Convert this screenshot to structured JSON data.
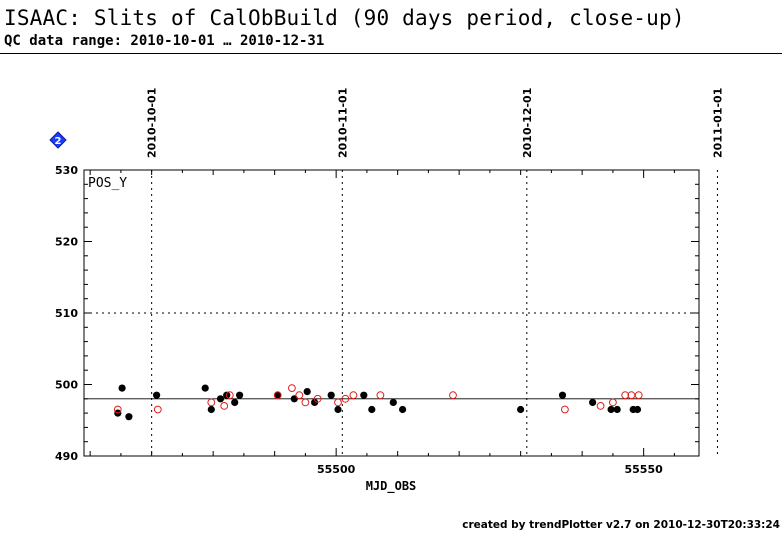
{
  "header": {
    "title": "ISAAC: Slits of CalObBuild (90 days period, close-up)",
    "subtitle": "QC data range: 2010-10-01 … 2010-12-31"
  },
  "badge": {
    "icon": "diamond-info-icon",
    "label": "2",
    "color": "#1a3cff"
  },
  "footer": {
    "text": "created by trendPlotter v2.7 on 2010-12-30T20:33:24"
  },
  "chart_data": {
    "type": "scatter",
    "title": "",
    "panel_label": "POS_Y",
    "xlabel": "MJD_OBS",
    "ylabel": "",
    "xlim": [
      55459,
      55559
    ],
    "ylim": [
      490,
      530
    ],
    "x_ticks": [
      55500,
      55550
    ],
    "y_ticks": [
      490,
      500,
      510,
      520,
      530
    ],
    "grid": "dotted",
    "date_lines": [
      {
        "label": "2010-10-01",
        "mjd": 55470
      },
      {
        "label": "2010-11-01",
        "mjd": 55501
      },
      {
        "label": "2010-12-01",
        "mjd": 55531
      },
      {
        "label": "2011-01-01",
        "mjd": 55562
      }
    ],
    "reference_line": 498,
    "colors": {
      "filled": "#000000",
      "open": "#e0201c"
    },
    "series": [
      {
        "marker": "filled",
        "x": [
          55464.5,
          55465.2,
          55466.3,
          55470.8,
          55478.7,
          55479.7,
          55481.2,
          55482.2,
          55483.5,
          55484.3,
          55490.5,
          55493.2,
          55495.3,
          55496.5,
          55499.2,
          55500.3,
          55504.5,
          55505.8,
          55509.3,
          55510.8,
          55530.0,
          55536.8,
          55541.7,
          55544.7,
          55545.7,
          55548.3,
          55549.0
        ],
        "y": [
          496.0,
          499.5,
          495.5,
          498.5,
          499.5,
          496.5,
          498.0,
          498.5,
          497.5,
          498.5,
          498.5,
          498.0,
          499.0,
          497.5,
          498.5,
          496.5,
          498.5,
          496.5,
          497.5,
          496.5,
          496.5,
          498.5,
          497.5,
          496.5,
          496.5,
          496.5,
          496.5
        ]
      },
      {
        "marker": "open",
        "x": [
          55464.5,
          55471.0,
          55479.7,
          55481.8,
          55482.7,
          55490.5,
          55492.8,
          55494.0,
          55495.0,
          55497.0,
          55500.3,
          55501.5,
          55502.8,
          55507.2,
          55519.0,
          55537.2,
          55543.0,
          55545.0,
          55547.0,
          55548.0,
          55549.2
        ],
        "y": [
          496.5,
          496.5,
          497.5,
          497.0,
          498.5,
          498.5,
          499.5,
          498.5,
          497.5,
          498.0,
          497.5,
          498.0,
          498.5,
          498.5,
          498.5,
          496.5,
          497.0,
          497.5,
          498.5,
          498.5,
          498.5
        ]
      }
    ]
  }
}
